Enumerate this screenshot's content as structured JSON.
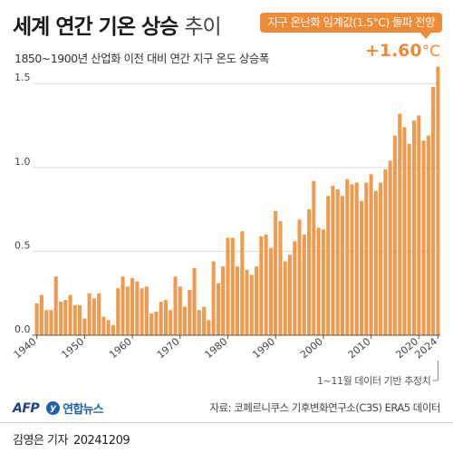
{
  "header": {
    "title_bold": "세계 연간 기온 상승",
    "title_light": "추이",
    "subtitle": "1850~1900년 산업화 이전 대비 연간 지구 온도 상승폭"
  },
  "badge": {
    "label": "지구 온난화 임계값(1.5°C) 돌파 전망"
  },
  "highlight": {
    "value": "+1.60",
    "unit": "°C"
  },
  "footer": {
    "afp": "AFP",
    "yna_mark": "y",
    "yna": "연합뉴스",
    "source": "자료: 코페르니쿠스 기후변화연구소(C3S) ERA5 데이터",
    "credit_name": "김영은 기자",
    "credit_date": "20241209"
  },
  "colors": {
    "bar": "#f09a4e",
    "accent": "#f08a35",
    "grid": "#d8d8d8",
    "axis": "#555555"
  },
  "chart_data": {
    "type": "bar",
    "title": "세계 연간 기온 상승 추이",
    "xlabel": "",
    "ylabel": "",
    "ylim": [
      0,
      1.62
    ],
    "yticks": [
      0.0,
      0.5,
      1.0,
      1.5
    ],
    "ytick_labels": [
      "0.0",
      "0.5",
      "1.0",
      "1.5"
    ],
    "xticks": [
      1940,
      1950,
      1960,
      1970,
      1980,
      1990,
      2000,
      2010,
      2020,
      2024
    ],
    "xtick_labels": [
      "1940",
      "1950",
      "1960",
      "1970",
      "1980",
      "1990",
      "2000",
      "2010",
      "2020",
      "2024"
    ],
    "grid": true,
    "x": [
      1940,
      1941,
      1942,
      1943,
      1944,
      1945,
      1946,
      1947,
      1948,
      1949,
      1950,
      1951,
      1952,
      1953,
      1954,
      1955,
      1956,
      1957,
      1958,
      1959,
      1960,
      1961,
      1962,
      1963,
      1964,
      1965,
      1966,
      1967,
      1968,
      1969,
      1970,
      1971,
      1972,
      1973,
      1974,
      1975,
      1976,
      1977,
      1978,
      1979,
      1980,
      1981,
      1982,
      1983,
      1984,
      1985,
      1986,
      1987,
      1988,
      1989,
      1990,
      1991,
      1992,
      1993,
      1994,
      1995,
      1996,
      1997,
      1998,
      1999,
      2000,
      2001,
      2002,
      2003,
      2004,
      2005,
      2006,
      2007,
      2008,
      2009,
      2010,
      2011,
      2012,
      2013,
      2014,
      2015,
      2016,
      2017,
      2018,
      2019,
      2020,
      2021,
      2022,
      2023,
      2024
    ],
    "values": [
      0.19,
      0.24,
      0.15,
      0.15,
      0.35,
      0.2,
      0.21,
      0.24,
      0.18,
      0.18,
      0.1,
      0.25,
      0.22,
      0.25,
      0.11,
      0.09,
      0.06,
      0.28,
      0.35,
      0.29,
      0.34,
      0.32,
      0.28,
      0.29,
      0.13,
      0.14,
      0.2,
      0.21,
      0.15,
      0.35,
      0.29,
      0.17,
      0.27,
      0.4,
      0.15,
      0.17,
      0.09,
      0.44,
      0.31,
      0.41,
      0.58,
      0.58,
      0.41,
      0.62,
      0.39,
      0.36,
      0.41,
      0.59,
      0.6,
      0.52,
      0.74,
      0.68,
      0.44,
      0.48,
      0.56,
      0.69,
      0.6,
      0.75,
      0.92,
      0.64,
      0.63,
      0.83,
      0.89,
      0.87,
      0.83,
      0.93,
      0.9,
      0.91,
      0.8,
      0.91,
      0.96,
      0.86,
      0.91,
      0.99,
      1.04,
      1.19,
      1.32,
      1.24,
      1.14,
      1.28,
      1.31,
      1.16,
      1.19,
      1.48,
      1.6
    ],
    "annotations": [
      {
        "year": 2024,
        "text": "1~11월 데이터 기반 추정치"
      }
    ]
  }
}
